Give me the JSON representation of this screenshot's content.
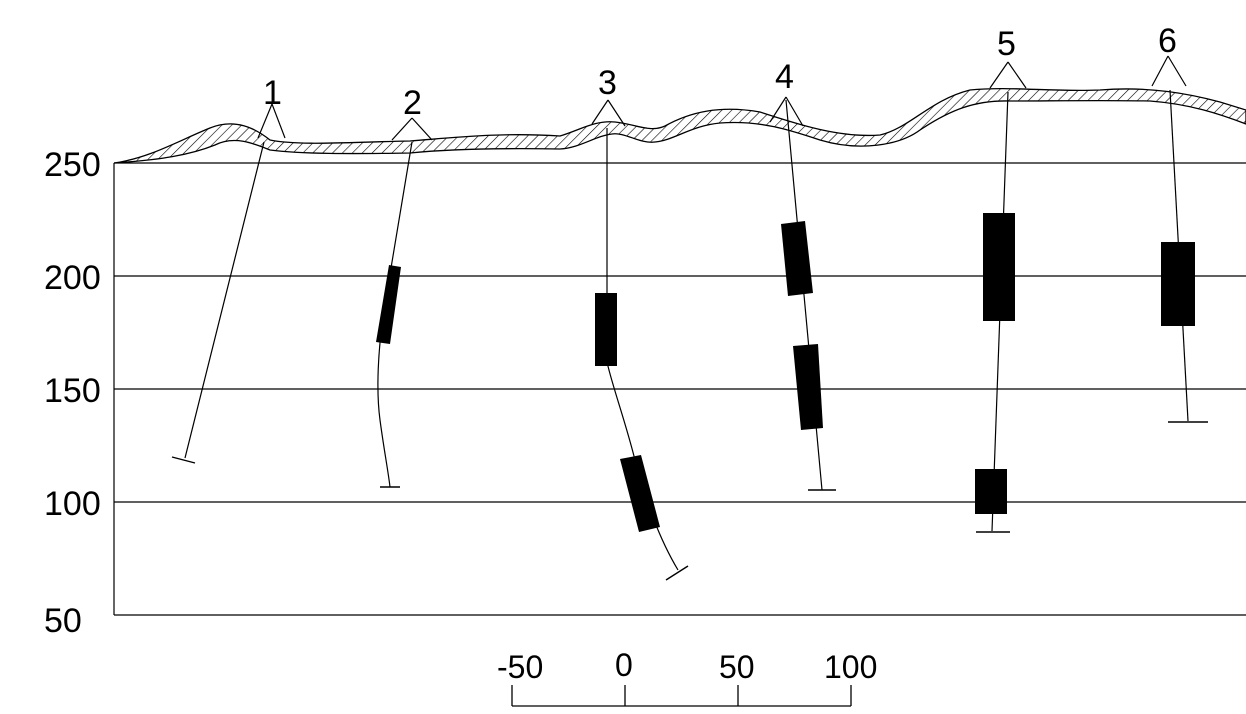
{
  "y_axis": {
    "ticks": [
      "250",
      "200",
      "150",
      "100",
      "50"
    ],
    "values": [
      250,
      200,
      150,
      100,
      50
    ]
  },
  "scale_bar": {
    "labels": [
      "-50",
      "0",
      "50",
      "100"
    ]
  },
  "wells": [
    {
      "label": "1",
      "mineralized_intervals": []
    },
    {
      "label": "2",
      "mineralized_intervals": [
        [
          205,
          170
        ]
      ]
    },
    {
      "label": "3",
      "mineralized_intervals": [
        [
          193,
          161
        ],
        [
          120,
          88
        ]
      ]
    },
    {
      "label": "4",
      "mineralized_intervals": [
        [
          224,
          192
        ],
        [
          169,
          133
        ]
      ]
    },
    {
      "label": "5",
      "mineralized_intervals": [
        [
          228,
          181
        ],
        [
          114,
          95
        ]
      ]
    },
    {
      "label": "6",
      "mineralized_intervals": [
        [
          215,
          178
        ]
      ]
    }
  ],
  "colors": {
    "ink": "#000000",
    "background": "#ffffff"
  }
}
